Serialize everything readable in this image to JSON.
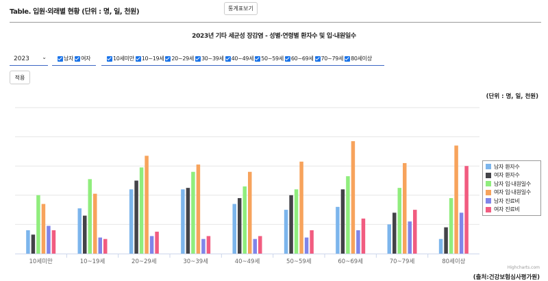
{
  "header": {
    "title": "Table. 입원·외래별 현황 (단위 : 명, 일, 천원)",
    "stats_button": "통계표보기"
  },
  "filters": {
    "year": "2023",
    "gender": [
      "남자",
      "여자"
    ],
    "ages": [
      "10세미만",
      "10~19세",
      "20~29세",
      "30~39세",
      "40~49세",
      "50~59세",
      "60~69세",
      "70~79세",
      "80세이상"
    ],
    "apply_button": "적용"
  },
  "chart_data": {
    "type": "bar",
    "title": "2023년   기타 세균성 장감염 - 성별·연령별 환자수 및 입·내원일수",
    "unit": "(단위 :    명, 일, 천원)",
    "categories": [
      "10세미만",
      "10~19세",
      "20~29세",
      "30~39세",
      "40~49세",
      "50~59세",
      "60~69세",
      "70~79세",
      "80세이상"
    ],
    "ylim": [
      0,
      100
    ],
    "grid": true,
    "legend_position": "right",
    "series": [
      {
        "name": "남자 환자수",
        "color": "#7cb5ec",
        "values": [
          16,
          31,
          44,
          44,
          34,
          30,
          32,
          20,
          10
        ]
      },
      {
        "name": "여자 환자수",
        "color": "#434348",
        "values": [
          13,
          26,
          50,
          45,
          38,
          40,
          44,
          28,
          18
        ]
      },
      {
        "name": "남자 입·내원일수",
        "color": "#90ed7d",
        "values": [
          40,
          51,
          59,
          56,
          46,
          44,
          53,
          45,
          38
        ]
      },
      {
        "name": "여자 입·내원일수",
        "color": "#f7a35c",
        "values": [
          34,
          41,
          67,
          61,
          56,
          63,
          77,
          62,
          74
        ]
      },
      {
        "name": "남자 진료비",
        "color": "#8085e9",
        "values": [
          19,
          11,
          12,
          10,
          10,
          11,
          16,
          22,
          28
        ]
      },
      {
        "name": "여자 진료비",
        "color": "#f15c80",
        "values": [
          16,
          10,
          15,
          12,
          12,
          16,
          24,
          30,
          60
        ]
      }
    ]
  },
  "footer": {
    "credits": "Highcharts.com",
    "source": "(출처:건강보험심사평가원)"
  }
}
